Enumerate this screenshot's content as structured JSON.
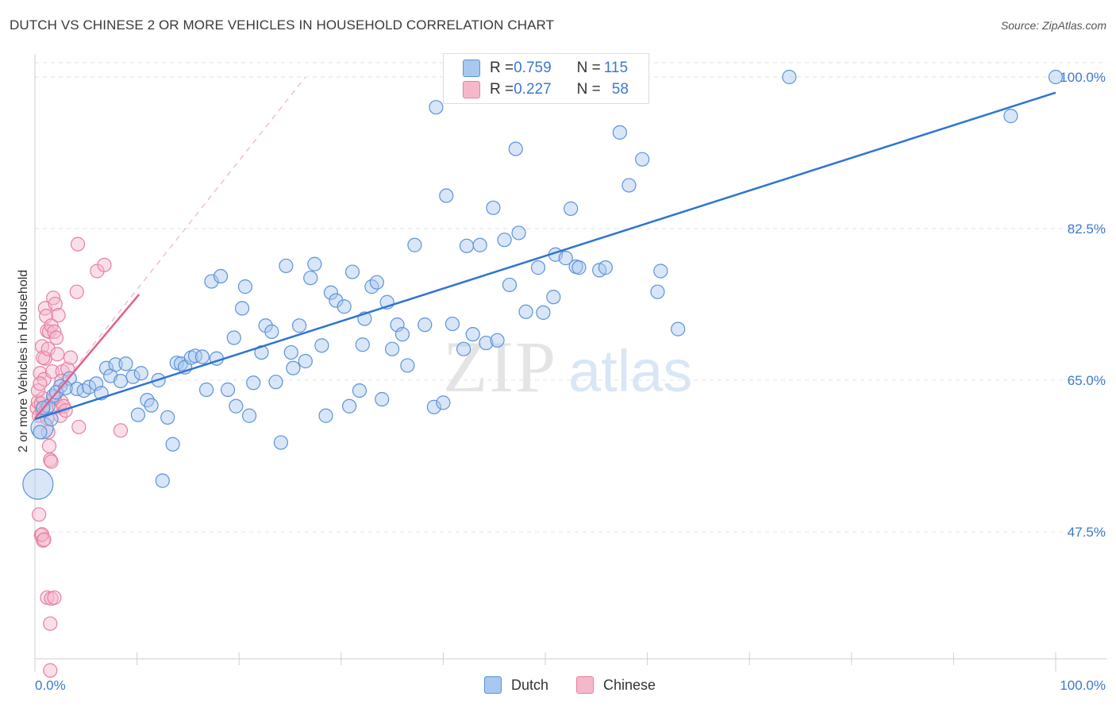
{
  "title": "DUTCH VS CHINESE 2 OR MORE VEHICLES IN HOUSEHOLD CORRELATION CHART",
  "source": "Source: ZipAtlas.com",
  "watermark": {
    "zip": "ZIP",
    "atlas": "atlas"
  },
  "colors": {
    "dutch_fill": "#a8c8f0",
    "dutch_stroke": "#5b93d8",
    "dutch_line": "#2f74d0",
    "chinese_fill": "#f5b8cb",
    "chinese_stroke": "#e77fa0",
    "chinese_line": "#e06090",
    "tick_label": "#3b78d0",
    "grid": "#e0e0e0"
  },
  "legend": {
    "rows": [
      {
        "r_label": "R = ",
        "r_value": "0.759",
        "n_label": "N = ",
        "n_value": "115"
      },
      {
        "r_label": "R = ",
        "r_value": "0.227",
        "n_label": "N = ",
        "n_value": "58"
      }
    ]
  },
  "bottom_legend": [
    "Dutch",
    "Chinese"
  ],
  "chart_data": {
    "type": "scatter",
    "title": "DUTCH VS CHINESE 2 OR MORE VEHICLES IN HOUSEHOLD CORRELATION CHART",
    "xlabel": "",
    "ylabel": "2 or more Vehicles in Household",
    "xlim": [
      0,
      100
    ],
    "ylim": [
      30,
      102
    ],
    "x_tick_labels": [
      "0.0%",
      "100.0%"
    ],
    "y_ticks": [
      47.5,
      65.0,
      82.5,
      100.0
    ],
    "y_tick_labels": [
      "47.5%",
      "65.0%",
      "82.5%",
      "100.0%"
    ],
    "grid": true,
    "legend_position": "top-center",
    "series": [
      {
        "name": "Dutch",
        "trend": {
          "x": [
            0,
            100
          ],
          "y": [
            60.5,
            98.2
          ]
        },
        "points": [
          [
            0.3,
            53.0
          ],
          [
            0.7,
            59.5
          ],
          [
            1.3,
            62.0
          ],
          [
            1.8,
            63.2
          ],
          [
            2.5,
            64.3
          ],
          [
            3.4,
            65.2
          ],
          [
            4.1,
            64.0
          ],
          [
            4.8,
            63.8
          ],
          [
            5.3,
            64.2
          ],
          [
            6.0,
            64.6
          ],
          [
            6.5,
            63.5
          ],
          [
            7.0,
            66.4
          ],
          [
            7.4,
            65.5
          ],
          [
            7.9,
            66.8
          ],
          [
            8.4,
            64.9
          ],
          [
            8.9,
            66.9
          ],
          [
            9.6,
            65.4
          ],
          [
            10.1,
            61.0
          ],
          [
            10.4,
            65.8
          ],
          [
            11.0,
            62.7
          ],
          [
            11.4,
            62.1
          ],
          [
            12.1,
            65.0
          ],
          [
            12.5,
            53.4
          ],
          [
            13.0,
            60.7
          ],
          [
            13.5,
            57.6
          ],
          [
            13.9,
            67.0
          ],
          [
            14.3,
            66.9
          ],
          [
            14.7,
            66.5
          ],
          [
            15.3,
            67.6
          ],
          [
            15.7,
            67.8
          ],
          [
            16.4,
            67.7
          ],
          [
            16.8,
            63.9
          ],
          [
            17.3,
            76.4
          ],
          [
            17.8,
            67.5
          ],
          [
            18.2,
            77.0
          ],
          [
            18.9,
            63.9
          ],
          [
            19.5,
            69.9
          ],
          [
            19.7,
            62.0
          ],
          [
            20.3,
            73.3
          ],
          [
            20.6,
            75.8
          ],
          [
            21.0,
            60.9
          ],
          [
            21.4,
            64.7
          ],
          [
            22.2,
            68.2
          ],
          [
            22.6,
            71.3
          ],
          [
            23.2,
            70.6
          ],
          [
            23.6,
            64.8
          ],
          [
            24.1,
            57.8
          ],
          [
            24.6,
            78.2
          ],
          [
            25.1,
            68.2
          ],
          [
            25.3,
            66.4
          ],
          [
            25.9,
            71.3
          ],
          [
            26.5,
            67.2
          ],
          [
            27.0,
            76.8
          ],
          [
            27.4,
            78.4
          ],
          [
            28.1,
            69.0
          ],
          [
            28.5,
            60.9
          ],
          [
            29.0,
            75.1
          ],
          [
            29.5,
            74.2
          ],
          [
            30.3,
            73.5
          ],
          [
            30.8,
            62.0
          ],
          [
            31.1,
            77.5
          ],
          [
            31.8,
            63.8
          ],
          [
            32.1,
            69.1
          ],
          [
            32.3,
            72.1
          ],
          [
            33.0,
            75.8
          ],
          [
            33.5,
            76.3
          ],
          [
            34.0,
            62.8
          ],
          [
            34.5,
            74.0
          ],
          [
            35.0,
            68.6
          ],
          [
            35.5,
            71.4
          ],
          [
            36.0,
            70.3
          ],
          [
            36.5,
            66.7
          ],
          [
            37.2,
            80.6
          ],
          [
            38.2,
            71.4
          ],
          [
            39.1,
            61.9
          ],
          [
            39.3,
            96.5
          ],
          [
            40.0,
            62.4
          ],
          [
            40.3,
            86.3
          ],
          [
            40.9,
            71.5
          ],
          [
            42.0,
            68.6
          ],
          [
            42.3,
            80.5
          ],
          [
            42.9,
            70.3
          ],
          [
            43.6,
            80.6
          ],
          [
            44.2,
            69.3
          ],
          [
            44.9,
            84.9
          ],
          [
            45.3,
            69.6
          ],
          [
            46.0,
            81.2
          ],
          [
            46.5,
            76.0
          ],
          [
            47.1,
            91.7
          ],
          [
            47.4,
            82.0
          ],
          [
            48.1,
            72.9
          ],
          [
            49.3,
            78.0
          ],
          [
            49.8,
            72.8
          ],
          [
            50.8,
            74.6
          ],
          [
            51.0,
            79.5
          ],
          [
            52.0,
            79.1
          ],
          [
            52.5,
            84.8
          ],
          [
            53.0,
            78.1
          ],
          [
            53.3,
            78.0
          ],
          [
            55.3,
            77.7
          ],
          [
            55.9,
            78.0
          ],
          [
            57.3,
            93.6
          ],
          [
            58.2,
            87.5
          ],
          [
            59.5,
            90.5
          ],
          [
            61.3,
            77.6
          ],
          [
            61.0,
            75.2
          ],
          [
            63.0,
            70.9
          ],
          [
            73.9,
            100.0
          ],
          [
            95.6,
            95.5
          ],
          [
            100.0,
            100.0
          ],
          [
            0.5,
            59.0
          ],
          [
            0.8,
            61.8
          ],
          [
            1.6,
            60.5
          ],
          [
            2.1,
            63.6
          ],
          [
            3.0,
            64.1
          ]
        ],
        "sizes": {
          "0": 32,
          "1": 22
        }
      },
      {
        "name": "Chinese",
        "trend": {
          "x": [
            0,
            10.2
          ],
          "y": [
            60.6,
            74.9
          ]
        },
        "trend_extended": {
          "x": [
            0,
            26.5
          ],
          "y": [
            60.6,
            100.0
          ]
        },
        "points": [
          [
            0.2,
            61.8
          ],
          [
            0.3,
            62.5
          ],
          [
            0.4,
            60.9
          ],
          [
            0.5,
            65.8
          ],
          [
            0.6,
            62.3
          ],
          [
            0.7,
            61.6
          ],
          [
            0.8,
            62.9
          ],
          [
            0.9,
            65.1
          ],
          [
            1.0,
            67.5
          ],
          [
            1.1,
            61.6
          ],
          [
            1.2,
            60.6
          ],
          [
            1.3,
            59.0
          ],
          [
            1.4,
            57.4
          ],
          [
            1.5,
            55.8
          ],
          [
            1.6,
            55.6
          ],
          [
            0.4,
            49.5
          ],
          [
            0.6,
            47.1
          ],
          [
            0.8,
            46.5
          ],
          [
            0.7,
            47.2
          ],
          [
            0.9,
            46.6
          ],
          [
            1.2,
            39.9
          ],
          [
            1.6,
            39.8
          ],
          [
            1.9,
            39.9
          ],
          [
            1.5,
            36.9
          ],
          [
            1.5,
            31.5
          ],
          [
            0.3,
            63.8
          ],
          [
            0.5,
            64.6
          ],
          [
            0.7,
            68.9
          ],
          [
            0.8,
            67.6
          ],
          [
            1.0,
            73.3
          ],
          [
            1.1,
            72.4
          ],
          [
            1.2,
            70.7
          ],
          [
            1.3,
            68.6
          ],
          [
            1.4,
            70.6
          ],
          [
            1.6,
            71.3
          ],
          [
            1.7,
            66.0
          ],
          [
            1.8,
            74.5
          ],
          [
            1.9,
            70.6
          ],
          [
            2.0,
            73.8
          ],
          [
            2.1,
            69.9
          ],
          [
            2.2,
            68.0
          ],
          [
            2.3,
            72.5
          ],
          [
            2.4,
            61.9
          ],
          [
            2.5,
            60.9
          ],
          [
            2.6,
            62.5
          ],
          [
            2.7,
            66.0
          ],
          [
            2.8,
            62.0
          ],
          [
            3.0,
            61.5
          ],
          [
            3.2,
            66.3
          ],
          [
            3.5,
            67.6
          ],
          [
            4.1,
            75.2
          ],
          [
            4.3,
            59.6
          ],
          [
            4.2,
            80.7
          ],
          [
            6.1,
            77.6
          ],
          [
            6.8,
            78.3
          ],
          [
            8.4,
            59.2
          ],
          [
            2.6,
            64.9
          ],
          [
            1.9,
            63.0
          ]
        ]
      }
    ]
  }
}
